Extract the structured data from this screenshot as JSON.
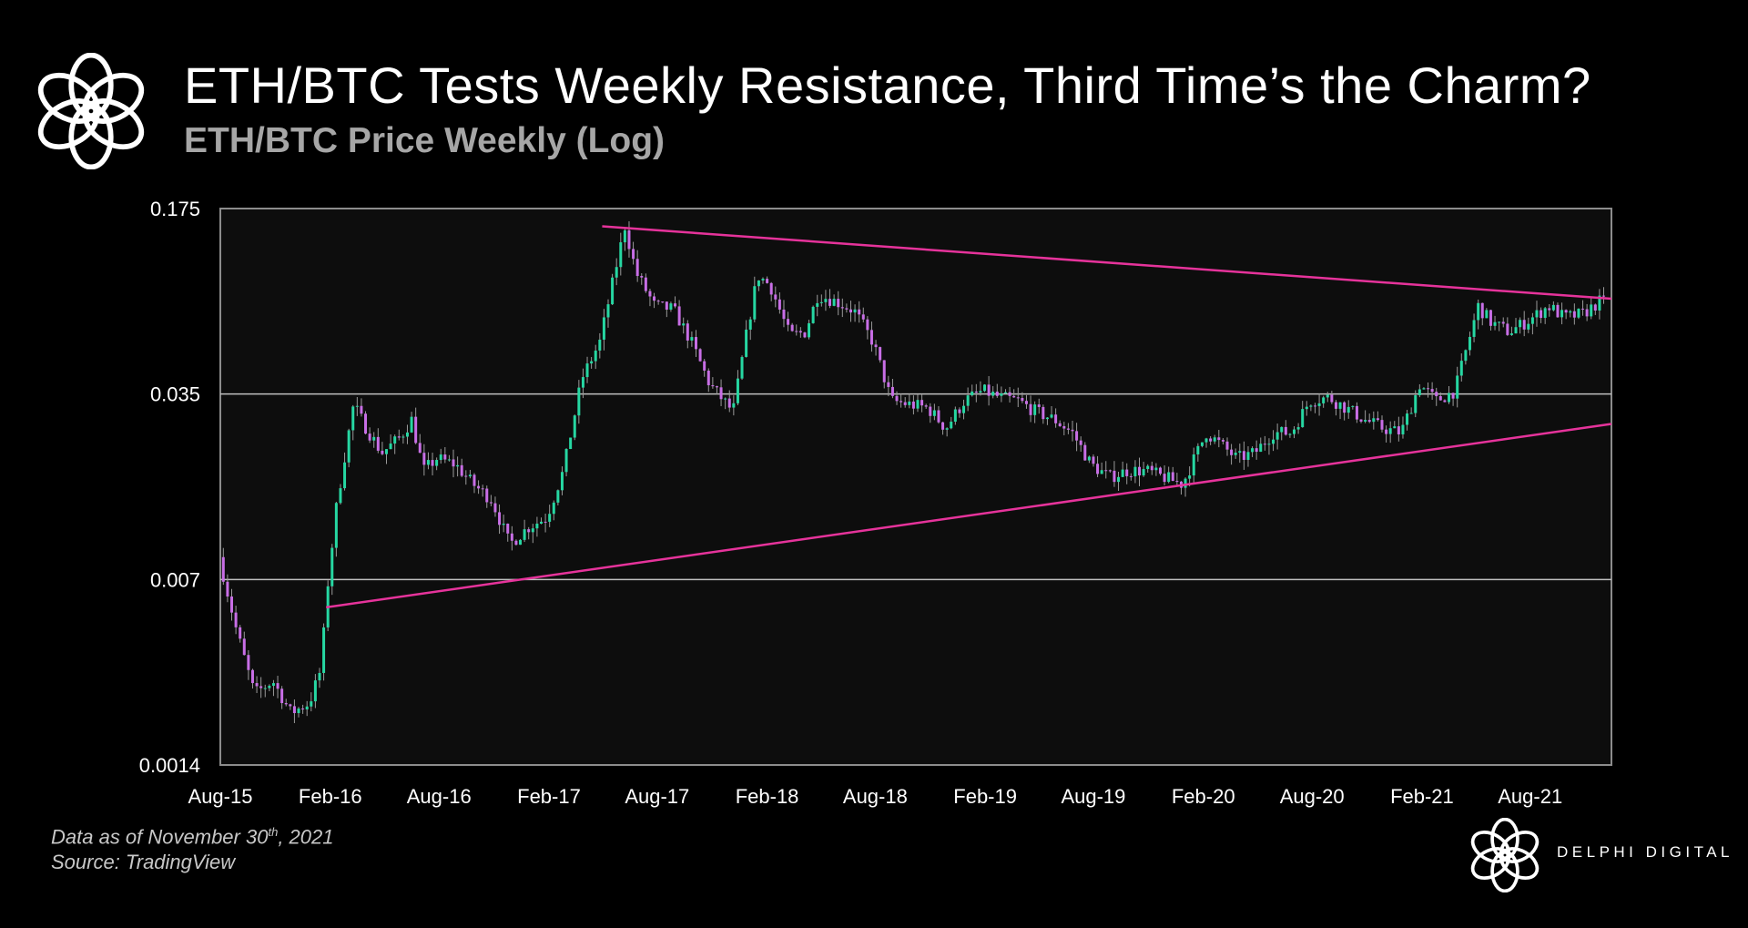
{
  "header": {
    "title": "ETH/BTC Tests Weekly Resistance, Third Time’s the Charm?",
    "subtitle": "ETH/BTC Price Weekly (Log)",
    "logo_icon": "delphi-flower-logo-icon"
  },
  "footer": {
    "data_prefix": "Data as of November 30",
    "data_sup": "th",
    "data_suffix": ", 2021",
    "source": "Source: TradingView",
    "brand": "DELPHI DIGITAL",
    "brand_icon": "delphi-flower-logo-icon"
  },
  "colors": {
    "background": "#000000",
    "plot_background": "#0d0d0d",
    "frame": "#8c8c8c",
    "gridline": "#bfbfbf",
    "up_candle": "#26d7a2",
    "down_candle": "#c86ee6",
    "trendline": "#e6339b",
    "text": "#ffffff",
    "subtitle": "#a6a6a6"
  },
  "chart_data": {
    "type": "candlestick",
    "scale": "log",
    "ylim": [
      0.0014,
      0.175
    ],
    "yticks": [
      "0.175",
      "0.035",
      "0.007",
      "0.0014"
    ],
    "xlim": [
      "2015-08-01",
      "2021-12-15"
    ],
    "xticks": [
      "Aug-15",
      "Feb-16",
      "Aug-16",
      "Feb-17",
      "Aug-17",
      "Feb-18",
      "Aug-18",
      "Feb-19",
      "Aug-19",
      "Feb-20",
      "Aug-20",
      "Feb-21",
      "Aug-21"
    ],
    "grid": "horizontal",
    "path_points": [
      [
        "2015-08-03",
        0.0085
      ],
      [
        "2015-09-01",
        0.0045
      ],
      [
        "2015-10-01",
        0.0026
      ],
      [
        "2015-11-01",
        0.0029
      ],
      [
        "2015-12-01",
        0.0022
      ],
      [
        "2016-01-01",
        0.0024
      ],
      [
        "2016-01-20",
        0.0032
      ],
      [
        "2016-02-01",
        0.0068
      ],
      [
        "2016-02-15",
        0.013
      ],
      [
        "2016-03-01",
        0.021
      ],
      [
        "2016-03-15",
        0.032
      ],
      [
        "2016-04-01",
        0.027
      ],
      [
        "2016-05-01",
        0.021
      ],
      [
        "2016-06-01",
        0.024
      ],
      [
        "2016-06-20",
        0.028
      ],
      [
        "2016-07-10",
        0.018
      ],
      [
        "2016-08-01",
        0.02
      ],
      [
        "2016-09-01",
        0.019
      ],
      [
        "2016-10-01",
        0.016
      ],
      [
        "2016-11-01",
        0.014
      ],
      [
        "2016-12-01",
        0.0095
      ],
      [
        "2017-01-01",
        0.011
      ],
      [
        "2017-02-01",
        0.012
      ],
      [
        "2017-03-01",
        0.018
      ],
      [
        "2017-04-01",
        0.04
      ],
      [
        "2017-05-01",
        0.055
      ],
      [
        "2017-06-12",
        0.15
      ],
      [
        "2017-07-01",
        0.1
      ],
      [
        "2017-08-01",
        0.075
      ],
      [
        "2017-09-01",
        0.073
      ],
      [
        "2017-10-01",
        0.055
      ],
      [
        "2017-11-01",
        0.038
      ],
      [
        "2017-12-10",
        0.03
      ],
      [
        "2018-01-01",
        0.058
      ],
      [
        "2018-01-20",
        0.098
      ],
      [
        "2018-02-10",
        0.09
      ],
      [
        "2018-03-15",
        0.058
      ],
      [
        "2018-04-10",
        0.06
      ],
      [
        "2018-05-01",
        0.083
      ],
      [
        "2018-06-01",
        0.078
      ],
      [
        "2018-07-01",
        0.072
      ],
      [
        "2018-08-01",
        0.055
      ],
      [
        "2018-09-01",
        0.033
      ],
      [
        "2018-10-01",
        0.032
      ],
      [
        "2018-11-01",
        0.031
      ],
      [
        "2018-12-01",
        0.026
      ],
      [
        "2019-01-01",
        0.033
      ],
      [
        "2019-02-01",
        0.036
      ],
      [
        "2019-03-01",
        0.034
      ],
      [
        "2019-04-01",
        0.033
      ],
      [
        "2019-05-01",
        0.03
      ],
      [
        "2019-06-01",
        0.028
      ],
      [
        "2019-07-01",
        0.025
      ],
      [
        "2019-08-01",
        0.019
      ],
      [
        "2019-09-01",
        0.017
      ],
      [
        "2019-10-01",
        0.018
      ],
      [
        "2019-11-01",
        0.018
      ],
      [
        "2019-12-01",
        0.017
      ],
      [
        "2020-01-01",
        0.016
      ],
      [
        "2020-02-10",
        0.025
      ],
      [
        "2020-03-01",
        0.023
      ],
      [
        "2020-04-01",
        0.02
      ],
      [
        "2020-05-01",
        0.021
      ],
      [
        "2020-06-01",
        0.025
      ],
      [
        "2020-07-01",
        0.025
      ],
      [
        "2020-08-01",
        0.033
      ],
      [
        "2020-09-01",
        0.034
      ],
      [
        "2020-10-01",
        0.031
      ],
      [
        "2020-11-01",
        0.028
      ],
      [
        "2020-12-01",
        0.026
      ],
      [
        "2021-01-01",
        0.025
      ],
      [
        "2021-02-01",
        0.038
      ],
      [
        "2021-03-01",
        0.033
      ],
      [
        "2021-04-01",
        0.036
      ],
      [
        "2021-05-10",
        0.075
      ],
      [
        "2021-06-01",
        0.065
      ],
      [
        "2021-07-01",
        0.06
      ],
      [
        "2021-08-01",
        0.066
      ],
      [
        "2021-09-05",
        0.075
      ],
      [
        "2021-10-01",
        0.068
      ],
      [
        "2021-11-01",
        0.07
      ],
      [
        "2021-11-29",
        0.078
      ]
    ],
    "trendlines": [
      {
        "role": "resistance",
        "from": [
          "2017-05-01",
          0.15
        ],
        "to": [
          "2021-12-15",
          0.08
        ]
      },
      {
        "role": "support",
        "from": [
          "2016-01-25",
          0.0055
        ],
        "to": [
          "2021-12-15",
          0.027
        ]
      }
    ]
  }
}
